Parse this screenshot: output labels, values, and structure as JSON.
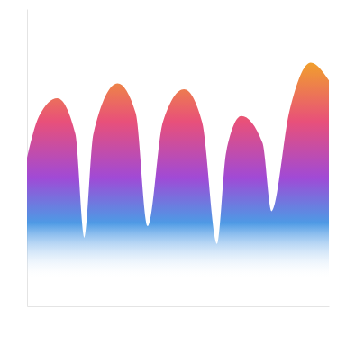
{
  "chart_data": {
    "type": "area",
    "x": [
      0,
      4,
      10,
      16,
      19,
      22,
      30,
      36,
      40,
      45,
      52,
      58,
      63,
      66,
      71,
      78,
      81,
      87,
      94,
      100
    ],
    "values": [
      50,
      64,
      70,
      58,
      23,
      58,
      75,
      65,
      27,
      62,
      73,
      62,
      21,
      52,
      64,
      55,
      32,
      66,
      82,
      76
    ],
    "color": "#e8507a",
    "xlim": [
      0,
      100
    ],
    "ylim": [
      0,
      100
    ],
    "tick_labels": false,
    "grid": false
  }
}
